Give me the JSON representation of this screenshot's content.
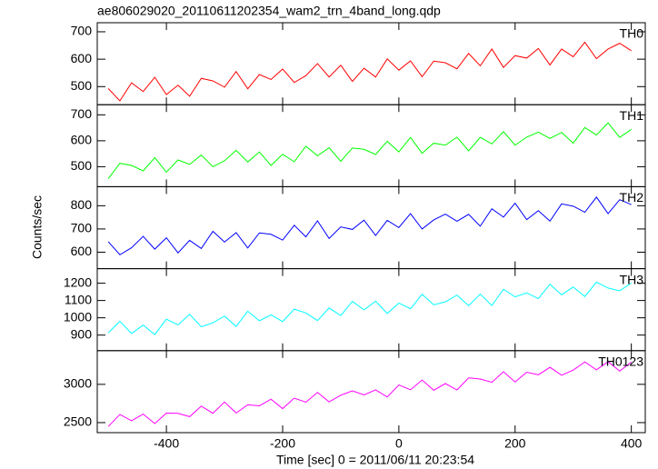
{
  "figure": {
    "title": "ae806029020_20110611202354_wam2_trn_4band_long.qdp",
    "xlabel": "Time [sec] 0 = 2011/06/11 20:23:54",
    "ylabel": "Counts/sec"
  },
  "chart_data": [
    {
      "type": "line",
      "xlim": [
        -519,
        424
      ],
      "xticks": [
        -400,
        -200,
        0,
        200,
        400
      ],
      "ylim": [
        434,
        733
      ],
      "yticks": [
        500,
        600,
        700
      ],
      "x": [
        -500,
        -480,
        -460,
        -440,
        -420,
        -400,
        -380,
        -360,
        -340,
        -320,
        -300,
        -280,
        -260,
        -240,
        -220,
        -200,
        -180,
        -160,
        -140,
        -120,
        -100,
        -80,
        -60,
        -40,
        -20,
        0,
        20,
        40,
        60,
        80,
        100,
        120,
        140,
        160,
        180,
        200,
        220,
        240,
        260,
        280,
        300,
        320,
        340,
        360,
        380,
        400
      ],
      "series": [
        {
          "name": "TH0",
          "color": "#ff0000",
          "values": [
            493,
            448,
            514,
            482,
            534,
            471,
            505,
            465,
            530,
            521,
            498,
            555,
            492,
            544,
            526,
            564,
            515,
            540,
            584,
            535,
            578,
            519,
            567,
            535,
            601,
            560,
            594,
            536,
            593,
            587,
            565,
            621,
            576,
            637,
            570,
            613,
            604,
            639,
            579,
            637,
            609,
            662,
            602,
            637,
            658,
            631
          ]
        }
      ]
    },
    {
      "type": "line",
      "xlim": [
        -519,
        424
      ],
      "xticks": [
        -400,
        -200,
        0,
        200,
        400
      ],
      "ylim": [
        423,
        739
      ],
      "yticks": [
        500,
        600,
        700
      ],
      "x": [
        -500,
        -480,
        -460,
        -440,
        -420,
        -400,
        -380,
        -360,
        -340,
        -320,
        -300,
        -280,
        -260,
        -240,
        -220,
        -200,
        -180,
        -160,
        -140,
        -120,
        -100,
        -80,
        -60,
        -40,
        -20,
        0,
        20,
        40,
        60,
        80,
        100,
        120,
        140,
        160,
        180,
        200,
        220,
        240,
        260,
        280,
        300,
        320,
        340,
        360,
        380,
        400
      ],
      "series": [
        {
          "name": "TH1",
          "color": "#00ff00",
          "values": [
            454,
            513,
            505,
            484,
            535,
            479,
            526,
            509,
            545,
            500,
            523,
            563,
            518,
            557,
            505,
            548,
            519,
            579,
            542,
            573,
            521,
            572,
            567,
            547,
            598,
            557,
            613,
            552,
            591,
            583,
            614,
            561,
            613,
            588,
            635,
            583,
            614,
            633,
            609,
            632,
            591,
            651,
            622,
            669,
            613,
            644
          ]
        }
      ]
    },
    {
      "type": "line",
      "xlim": [
        -519,
        424
      ],
      "xticks": [
        -400,
        -200,
        0,
        200,
        400
      ],
      "ylim": [
        529,
        882
      ],
      "yticks": [
        600,
        700,
        800
      ],
      "x": [
        -500,
        -480,
        -460,
        -440,
        -420,
        -400,
        -380,
        -360,
        -340,
        -320,
        -300,
        -280,
        -260,
        -240,
        -220,
        -200,
        -180,
        -160,
        -140,
        -120,
        -100,
        -80,
        -60,
        -40,
        -20,
        0,
        20,
        40,
        60,
        80,
        100,
        120,
        140,
        160,
        180,
        200,
        220,
        240,
        260,
        280,
        300,
        320,
        340,
        360,
        380,
        400
      ],
      "series": [
        {
          "name": "TH2",
          "color": "#0000ff",
          "values": [
            645,
            589,
            619,
            668,
            613,
            662,
            597,
            651,
            616,
            690,
            644,
            684,
            618,
            683,
            677,
            652,
            716,
            666,
            735,
            659,
            709,
            698,
            738,
            672,
            737,
            706,
            766,
            700,
            739,
            764,
            733,
            763,
            712,
            787,
            751,
            811,
            740,
            779,
            734,
            808,
            798,
            772,
            837,
            766,
            826,
            805
          ]
        }
      ]
    },
    {
      "type": "line",
      "xlim": [
        -519,
        424
      ],
      "xticks": [
        -400,
        -200,
        0,
        200,
        400
      ],
      "ylim": [
        810,
        1284
      ],
      "yticks": [
        900,
        1000,
        1100,
        1200
      ],
      "x": [
        -500,
        -480,
        -460,
        -440,
        -420,
        -400,
        -380,
        -360,
        -340,
        -320,
        -300,
        -280,
        -260,
        -240,
        -220,
        -200,
        -180,
        -160,
        -140,
        -120,
        -100,
        -80,
        -60,
        -40,
        -20,
        0,
        20,
        40,
        60,
        80,
        100,
        120,
        140,
        160,
        180,
        200,
        220,
        240,
        260,
        280,
        300,
        320,
        340,
        360,
        380,
        400
      ],
      "series": [
        {
          "name": "TH3",
          "color": "#00ffff",
          "values": [
            913,
            980,
            909,
            958,
            903,
            992,
            959,
            1020,
            948,
            971,
            1010,
            950,
            1038,
            983,
            1017,
            978,
            1050,
            1028,
            984,
            1057,
            1013,
            1095,
            1046,
            1096,
            1025,
            1085,
            1052,
            1136,
            1075,
            1092,
            1131,
            1070,
            1137,
            1071,
            1165,
            1121,
            1144,
            1111,
            1194,
            1133,
            1178,
            1123,
            1206,
            1172,
            1156,
            1201
          ]
        }
      ]
    },
    {
      "type": "line",
      "xlim": [
        -519,
        424
      ],
      "xticks": [
        -400,
        -200,
        0,
        200,
        400
      ],
      "ylim": [
        2369,
        3440
      ],
      "yticks": [
        2500,
        3000
      ],
      "x": [
        -500,
        -480,
        -460,
        -440,
        -420,
        -400,
        -380,
        -360,
        -340,
        -320,
        -300,
        -280,
        -260,
        -240,
        -220,
        -200,
        -180,
        -160,
        -140,
        -120,
        -100,
        -80,
        -60,
        -40,
        -20,
        0,
        20,
        40,
        60,
        80,
        100,
        120,
        140,
        160,
        180,
        200,
        220,
        240,
        260,
        280,
        300,
        320,
        340,
        360,
        380,
        400
      ],
      "series": [
        {
          "name": "TH0123",
          "color": "#ff00ff",
          "values": [
            2450,
            2607,
            2524,
            2611,
            2488,
            2624,
            2621,
            2578,
            2715,
            2622,
            2769,
            2626,
            2733,
            2720,
            2806,
            2683,
            2820,
            2767,
            2894,
            2771,
            2858,
            2915,
            2862,
            2928,
            2835,
            2992,
            2929,
            3056,
            2923,
            3010,
            2927,
            3084,
            3070,
            3027,
            3164,
            3031,
            3158,
            3125,
            3222,
            3119,
            3186,
            3292,
            3189,
            3296,
            3173,
            3290
          ]
        }
      ]
    }
  ]
}
